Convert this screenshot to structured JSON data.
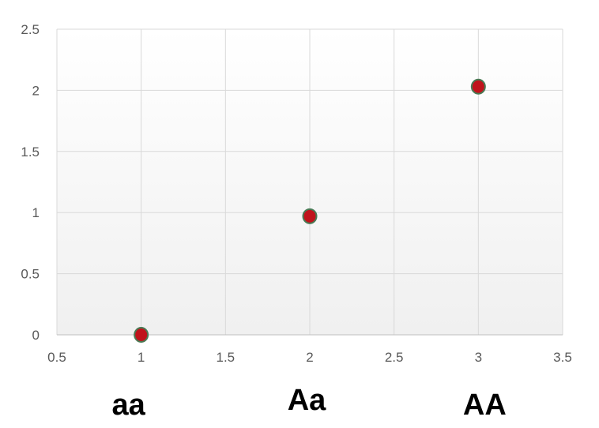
{
  "chart_data": {
    "type": "scatter",
    "title": "",
    "xlabel": "",
    "ylabel": "",
    "xlim": [
      0.5,
      3.5
    ],
    "ylim": [
      0,
      2.5
    ],
    "x_ticks": [
      "0.5",
      "1",
      "1.5",
      "2",
      "2.5",
      "3",
      "3.5"
    ],
    "y_ticks": [
      "0",
      "0.5",
      "1",
      "1.5",
      "2",
      "2.5"
    ],
    "grid": true,
    "legend": "none",
    "series": [
      {
        "points": [
          {
            "x": 1,
            "y": 0
          },
          {
            "x": 2,
            "y": 0.97
          },
          {
            "x": 3,
            "y": 2.03
          }
        ],
        "marker_fill": "#c0131b",
        "marker_edge": "#4a7a55"
      }
    ],
    "category_labels": [
      {
        "x": 1,
        "text": "aa"
      },
      {
        "x": 2,
        "text": "Aa"
      },
      {
        "x": 3,
        "text": "AA"
      }
    ]
  }
}
